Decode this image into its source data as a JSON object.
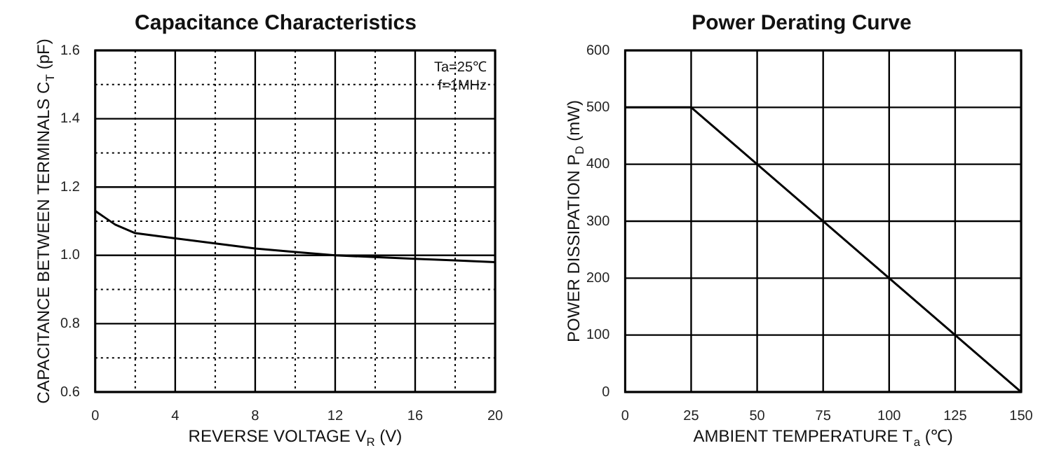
{
  "chart_data": [
    {
      "type": "line",
      "title": "Capacitance Characteristics",
      "xlabel": "REVERSE VOLTAGE V$_{R}$ (V)",
      "ylabel": "CAPACITANCE BETWEEN TERMINALS C$_{T}$ (pF)",
      "annotations": [
        "Ta=25℃",
        "f=1MHz"
      ],
      "x": [
        0,
        0.5,
        1,
        2,
        4,
        6,
        8,
        10,
        12,
        14,
        16,
        18,
        20
      ],
      "series": [
        {
          "color": "#000000",
          "values": [
            1.13,
            1.11,
            1.09,
            1.065,
            1.05,
            1.035,
            1.02,
            1.01,
            1.0,
            0.995,
            0.99,
            0.985,
            0.98
          ]
        }
      ],
      "xlim": [
        0,
        20
      ],
      "xticks": [
        0,
        {
          "value": 2,
          "label": null
        },
        4,
        {
          "value": 6,
          "label": null
        },
        8,
        {
          "value": 10,
          "label": null
        },
        12,
        {
          "value": 14,
          "label": null
        },
        16,
        {
          "value": 18,
          "label": null
        },
        20
      ],
      "ylim": [
        0.6,
        1.6
      ],
      "yticks": [
        {
          "value": 0.6,
          "label": "0.6"
        },
        {
          "value": 0.7,
          "label": null
        },
        {
          "value": 0.8,
          "label": "0.8"
        },
        {
          "value": 0.9,
          "label": null
        },
        {
          "value": 1.0,
          "label": "1.0"
        },
        {
          "value": 1.1,
          "label": null
        },
        {
          "value": 1.2,
          "label": "1.2"
        },
        {
          "value": 1.3,
          "label": null
        },
        {
          "value": 1.4,
          "label": "1.4"
        },
        {
          "value": 1.5,
          "label": null
        },
        {
          "value": 1.6,
          "label": "1.6"
        }
      ],
      "grid": true,
      "legend": false,
      "marker": "none",
      "line_style": "solid"
    },
    {
      "type": "line",
      "title": "Power Derating Curve",
      "xlabel": "AMBIENT TEMPERATURE T$_{a}$ (℃)",
      "ylabel": "POWER DISSIPATION P$_{D}$ (mW)",
      "x": [
        0,
        25,
        150
      ],
      "series": [
        {
          "color": "#000000",
          "values": [
            500,
            500,
            0
          ]
        }
      ],
      "xlim": [
        0,
        150
      ],
      "xticks": [
        0,
        25,
        50,
        75,
        100,
        125,
        150
      ],
      "ylim": [
        0,
        600
      ],
      "yticks": [
        0,
        100,
        200,
        300,
        400,
        500,
        600
      ],
      "grid": true,
      "legend": false,
      "marker": "none",
      "line_style": "solid"
    }
  ]
}
